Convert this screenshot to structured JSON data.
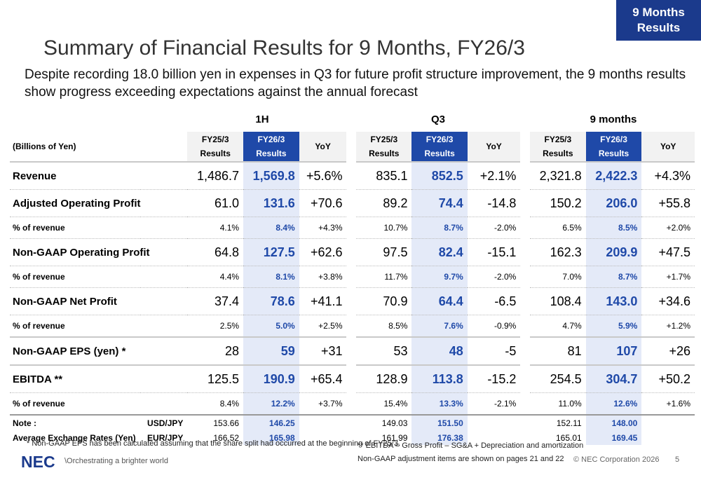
{
  "badge": "9 Months\nResults",
  "title": "Summary of Financial Results for 9 Months, FY26/3",
  "subtitle": "Despite recording 18.0 billion yen in expenses in Q3 for future profit structure improvement, the 9 months results show progress exceeding expectations against the annual forecast",
  "periods": [
    "1H",
    "Q3",
    "9 months"
  ],
  "unit_label": "(Billions of Yen)",
  "col_headers": [
    "FY25/3\nResults",
    "FY26/3\nResults",
    "YoY"
  ],
  "rows": [
    {
      "label": "Revenue",
      "type": "main",
      "values": [
        "1,486.7",
        "1,569.8",
        "+5.6%",
        "835.1",
        "852.5",
        "+2.1%",
        "2,321.8",
        "2,422.3",
        "+4.3%"
      ]
    },
    {
      "label": "Adjusted Operating Profit",
      "type": "main",
      "values": [
        "61.0",
        "131.6",
        "+70.6",
        "89.2",
        "74.4",
        "-14.8",
        "150.2",
        "206.0",
        "+55.8"
      ]
    },
    {
      "label": "% of revenue",
      "type": "sub",
      "values": [
        "4.1%",
        "8.4%",
        "+4.3%",
        "10.7%",
        "8.7%",
        "-2.0%",
        "6.5%",
        "8.5%",
        "+2.0%"
      ]
    },
    {
      "label": "Non-GAAP Operating Profit",
      "type": "main",
      "values": [
        "64.8",
        "127.5",
        "+62.6",
        "97.5",
        "82.4",
        "-15.1",
        "162.3",
        "209.9",
        "+47.5"
      ]
    },
    {
      "label": "% of revenue",
      "type": "sub",
      "values": [
        "4.4%",
        "8.1%",
        "+3.8%",
        "11.7%",
        "9.7%",
        "-2.0%",
        "7.0%",
        "8.7%",
        "+1.7%"
      ]
    },
    {
      "label": "Non-GAAP Net Profit",
      "type": "main",
      "values": [
        "37.4",
        "78.6",
        "+41.1",
        "70.9",
        "64.4",
        "-6.5",
        "108.4",
        "143.0",
        "+34.6"
      ]
    },
    {
      "label": "% of revenue",
      "type": "sub",
      "values": [
        "2.5%",
        "5.0%",
        "+2.5%",
        "8.5%",
        "7.6%",
        "-0.9%",
        "4.7%",
        "5.9%",
        "+1.2%"
      ]
    },
    {
      "label": "Non-GAAP EPS (yen) *",
      "type": "main",
      "values": [
        "28",
        "59",
        "+31",
        "53",
        "48",
        "-5",
        "81",
        "107",
        "+26"
      ]
    },
    {
      "label": "EBITDA **",
      "type": "main",
      "values": [
        "125.5",
        "190.9",
        "+65.4",
        "128.9",
        "113.8",
        "-15.2",
        "254.5",
        "304.7",
        "+50.2"
      ]
    },
    {
      "label": "% of revenue",
      "type": "sub",
      "values": [
        "8.4%",
        "12.2%",
        "+3.7%",
        "15.4%",
        "13.3%",
        "-2.1%",
        "11.0%",
        "12.6%",
        "+1.6%"
      ]
    }
  ],
  "fx": [
    {
      "label": "Note :",
      "currency": "USD/JPY",
      "values": [
        "153.66",
        "146.25",
        "",
        "149.03",
        "151.50",
        "",
        "152.11",
        "148.00",
        ""
      ]
    },
    {
      "label": "Average Exchange Rates (Yen)",
      "currency": "EUR/JPY",
      "values": [
        "166.52",
        "165.98",
        "",
        "161.99",
        "176.38",
        "",
        "165.01",
        "169.45",
        ""
      ]
    }
  ],
  "footnote_eps": "* Non-GAAP EPS has been calculated assuming that the share split had occurred at the beginning of FY25/3.",
  "footnote_ebitda": "** EBITDA = Gross Profit – SG&A + Depreciation and amortization",
  "footnote_adjust": "Non-GAAP adjustment items are shown on pages 21 and 22",
  "logo": "NEC",
  "slogan": "\\Orchestrating a brighter world",
  "copyright": "© NEC Corporation 2026",
  "page_number": "5",
  "colors": {
    "accent": "#1f49a8",
    "badge": "#1b3a8c",
    "highlight_bg": "#e4eaf8"
  }
}
